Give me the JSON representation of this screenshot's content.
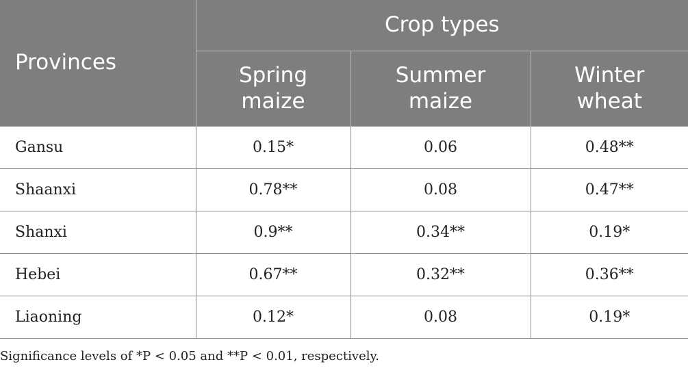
{
  "table": {
    "province_header": "Provinces",
    "group_header": "Crop types",
    "crop_headers": [
      {
        "line1": "Spring",
        "line2": "maize"
      },
      {
        "line1": "Summer",
        "line2": "maize"
      },
      {
        "line1": "Winter",
        "line2": "wheat"
      }
    ],
    "rows": [
      {
        "province": "Gansu",
        "values": [
          "0.15*",
          "0.06",
          "0.48**"
        ]
      },
      {
        "province": "Shaanxi",
        "values": [
          "0.78**",
          "0.08",
          "0.47**"
        ]
      },
      {
        "province": "Shanxi",
        "values": [
          "0.9**",
          "0.34**",
          "0.19*"
        ]
      },
      {
        "province": "Hebei",
        "values": [
          "0.67**",
          "0.32**",
          "0.36**"
        ]
      },
      {
        "province": "Liaoning",
        "values": [
          "0.12*",
          "0.08",
          "0.19*"
        ]
      }
    ]
  },
  "footnote": "Significance levels of *P < 0.05 and **P < 0.01, respectively.",
  "colors": {
    "header_bg": "#7d7f7d",
    "header_text": "#ffffff",
    "body_text": "#222222",
    "grid": "#8f8f8f"
  }
}
